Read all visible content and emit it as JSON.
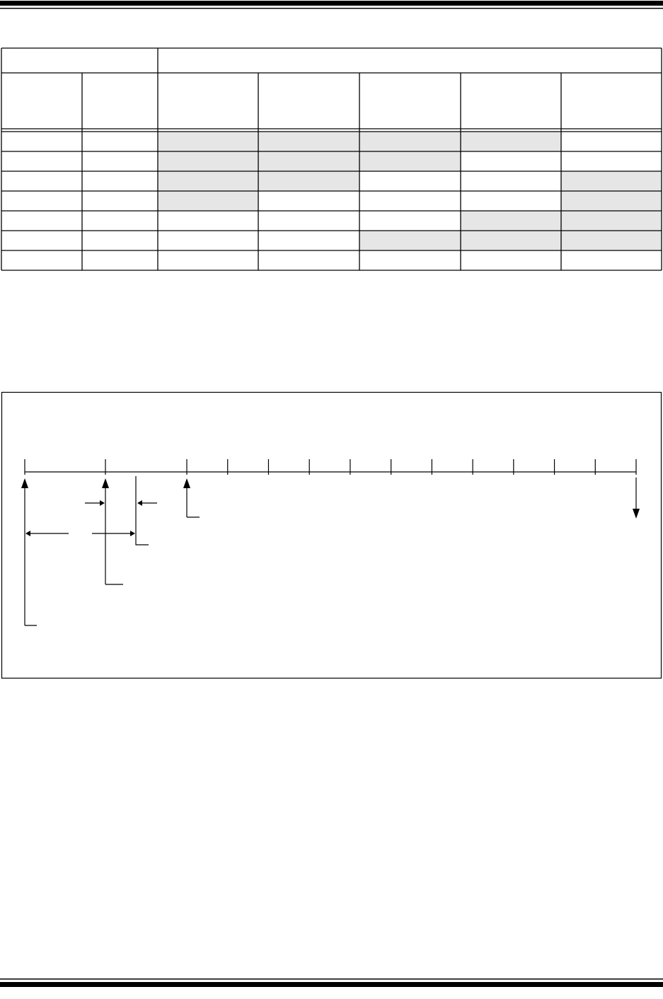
{
  "colors": {
    "line": "#000000",
    "shade": "#e6e6e6"
  },
  "table": {
    "rows": [
      {
        "shaded": [
          false,
          false,
          true,
          true,
          true,
          true,
          false
        ]
      },
      {
        "shaded": [
          false,
          false,
          true,
          true,
          true,
          false,
          false
        ]
      },
      {
        "shaded": [
          false,
          false,
          true,
          true,
          false,
          false,
          true
        ]
      },
      {
        "shaded": [
          false,
          false,
          true,
          false,
          false,
          false,
          true
        ]
      },
      {
        "shaded": [
          false,
          false,
          false,
          false,
          false,
          true,
          true
        ]
      },
      {
        "shaded": [
          false,
          false,
          false,
          false,
          true,
          true,
          true
        ]
      },
      {
        "shaded": [
          false,
          false,
          false,
          false,
          false,
          false,
          false
        ]
      }
    ]
  },
  "timeline": {
    "intervals": 15
  }
}
